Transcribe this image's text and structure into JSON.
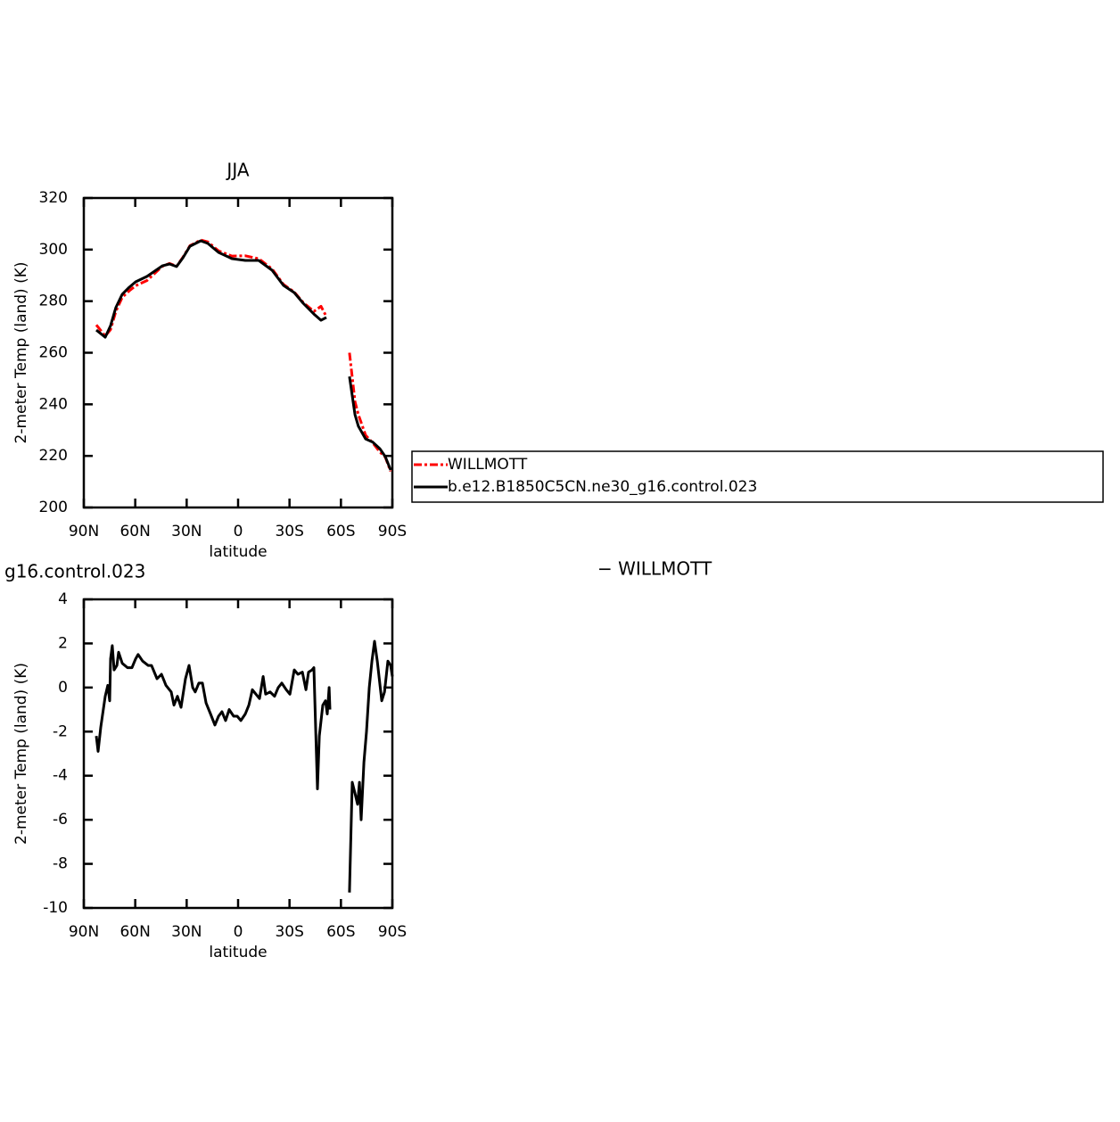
{
  "chart_data": [
    {
      "type": "line",
      "title": "JJA",
      "xlabel": "latitude",
      "ylabel": "2-meter Temp (land) (K)",
      "xlim": [
        90,
        -90
      ],
      "ylim": [
        200,
        320
      ],
      "xticks": [
        {
          "value": 90,
          "label": "90N"
        },
        {
          "value": 60,
          "label": "60N"
        },
        {
          "value": 30,
          "label": "30N"
        },
        0,
        {
          "value": -30,
          "label": "30S"
        },
        {
          "value": -60,
          "label": "60S"
        },
        {
          "value": -90,
          "label": "90S"
        }
      ],
      "yticks": [
        200,
        220,
        240,
        260,
        280,
        300,
        320
      ],
      "legend": "right",
      "x": [
        82.7,
        77.5,
        74.4,
        71.3,
        67.6,
        63.5,
        59.8,
        53.1,
        44.2,
        40,
        35.9,
        32.2,
        28.1,
        21.8,
        17.7,
        11.4,
        3.6,
        -4.2,
        -12,
        -19.8,
        -26.5,
        -32.8,
        -38,
        -44.2,
        -48.4,
        -51.5,
        null,
        -65,
        -68.2,
        -70.2,
        -74.4,
        -78.6,
        -82.7,
        -85.9,
        -89
      ],
      "series": [
        {
          "name": "WILLMOTT",
          "color": "#ff0000",
          "dash": "dashed",
          "values": [
            270.8,
            266.5,
            269,
            276,
            281.5,
            284,
            286,
            288,
            293.5,
            294.6,
            293.5,
            297,
            301.5,
            303.7,
            303,
            299.5,
            297.5,
            297.6,
            296.5,
            292.5,
            286.5,
            283.5,
            279.5,
            276,
            278,
            274,
            null,
            260,
            241,
            236,
            228,
            225,
            221.5,
            219.5,
            214
          ]
        },
        {
          "name": "b.e12.B1850C5CN.ne30_g16.control.023",
          "color": "#000000",
          "dash": "solid",
          "values": [
            268.8,
            266,
            270.5,
            277.5,
            282.7,
            285.4,
            287.5,
            289.6,
            293.7,
            294.4,
            293.4,
            296.8,
            301.3,
            303.4,
            302.4,
            298.9,
            296.5,
            295.8,
            295.8,
            292,
            286.1,
            283.3,
            279.2,
            275,
            272.6,
            273.7,
            null,
            250.8,
            236,
            231.5,
            226.6,
            225.3,
            222.8,
            219.7,
            214.5
          ]
        }
      ]
    },
    {
      "type": "line",
      "title": "g16.control.023",
      "subtitle": "− WILLMOTT",
      "xlabel": "latitude",
      "ylabel": "2-meter Temp (land) (K)",
      "xlim": [
        90,
        -90
      ],
      "ylim": [
        -10,
        4
      ],
      "xticks": [
        {
          "value": 90,
          "label": "90N"
        },
        {
          "value": 60,
          "label": "60N"
        },
        {
          "value": 30,
          "label": "30N"
        },
        0,
        {
          "value": -30,
          "label": "30S"
        },
        {
          "value": -60,
          "label": "60S"
        },
        {
          "value": -90,
          "label": "90S"
        }
      ],
      "yticks": [
        -10,
        -8,
        -6,
        -4,
        -2,
        0,
        2,
        4
      ],
      "x": [
        82.7,
        81.7,
        80.1,
        77.5,
        76,
        74.9,
        74.4,
        73.4,
        72.3,
        70.7,
        69.7,
        67.6,
        64.5,
        61.9,
        59.8,
        58.3,
        55.7,
        52.5,
        50.5,
        47.3,
        44.7,
        42.1,
        39,
        37.4,
        35.4,
        33.3,
        30.7,
        28.6,
        26.5,
        25,
        22.9,
        20.8,
        18.7,
        16.1,
        13.5,
        11.4,
        9.4,
        7.3,
        5.2,
        2.6,
        0.5,
        -1.6,
        -4.2,
        -6.3,
        -8.3,
        -10.4,
        -12.5,
        -14.6,
        -16.1,
        -18.7,
        -21.3,
        -23.4,
        -25.5,
        -28.1,
        -30.2,
        -32.8,
        -34.9,
        -37.5,
        -39.6,
        -41.1,
        -43.2,
        -44.2,
        -45.3,
        -46.3,
        -47.4,
        -49.4,
        -51,
        -52,
        -53.1,
        -53.6,
        null,
        -65,
        -66.6,
        -68.2,
        -69.7,
        -70.8,
        -71.8,
        -73.4,
        -74.9,
        -76.5,
        -78.1,
        -79.6,
        -81.2,
        -83.8,
        -85.4,
        -87.4,
        -89,
        -90
      ],
      "series": [
        {
          "color": "#000000",
          "dash": "solid",
          "values": [
            -2.2,
            -2.9,
            -1.8,
            -0.4,
            0.1,
            -0.6,
            1.3,
            1.9,
            0.8,
            1.0,
            1.6,
            1.1,
            0.9,
            0.9,
            1.3,
            1.5,
            1.2,
            1.0,
            1.0,
            0.4,
            0.6,
            0.1,
            -0.2,
            -0.8,
            -0.4,
            -0.9,
            0.4,
            1.0,
            0.0,
            -0.2,
            0.2,
            0.2,
            -0.7,
            -1.2,
            -1.7,
            -1.3,
            -1.1,
            -1.5,
            -1.0,
            -1.3,
            -1.3,
            -1.5,
            -1.2,
            -0.8,
            -0.1,
            -0.3,
            -0.5,
            0.5,
            -0.3,
            -0.2,
            -0.4,
            0.0,
            0.2,
            -0.1,
            -0.3,
            0.8,
            0.6,
            0.7,
            -0.1,
            0.7,
            0.8,
            0.9,
            -2.0,
            -4.6,
            -2.2,
            -0.8,
            -0.6,
            -1.2,
            0.0,
            -1.0,
            null,
            -9.3,
            -4.3,
            -4.8,
            -5.3,
            -4.3,
            -6.0,
            -3.4,
            -2.0,
            0.0,
            1.2,
            2.1,
            1.2,
            -0.6,
            -0.2,
            1.2,
            1.0,
            0.5
          ]
        }
      ]
    }
  ]
}
